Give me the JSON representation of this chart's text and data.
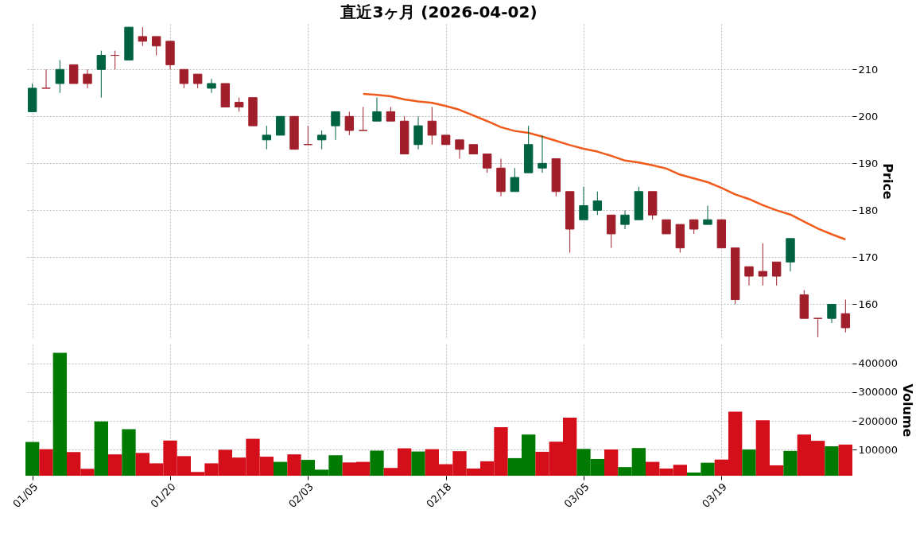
{
  "chart_data": [
    {
      "type": "candlestick",
      "title": "直近3ヶ月 (2026-04-02)",
      "ylabel": "Price",
      "categories": [
        null,
        null,
        null,
        null,
        null,
        null,
        null,
        null,
        null,
        null,
        null,
        null,
        null,
        null,
        null,
        null,
        null,
        null,
        null,
        null,
        null,
        null,
        null,
        null,
        null,
        null,
        null,
        null,
        null,
        null,
        null,
        null,
        null,
        null,
        null,
        null,
        null,
        null,
        null,
        null,
        null,
        null,
        null,
        null,
        null,
        null,
        null,
        null,
        null,
        null,
        null,
        null,
        null,
        null,
        null,
        null,
        null,
        null,
        null,
        null
      ],
      "ohlc": [
        [
          201,
          207,
          201,
          206
        ],
        [
          206,
          210,
          206,
          206
        ],
        [
          207,
          212,
          205,
          210
        ],
        [
          211,
          211,
          207,
          207
        ],
        [
          209,
          210,
          206,
          207
        ],
        [
          210,
          214,
          204,
          213
        ],
        [
          213,
          214,
          210,
          213
        ],
        [
          212,
          219,
          212,
          219
        ],
        [
          217,
          219,
          215,
          216
        ],
        [
          217,
          217,
          213,
          215
        ],
        [
          216,
          216,
          210,
          211
        ],
        [
          210,
          210,
          206,
          207
        ],
        [
          209,
          209,
          206,
          207
        ],
        [
          206,
          208,
          205,
          207
        ],
        [
          207,
          207,
          202,
          202
        ],
        [
          203,
          204,
          201,
          202
        ],
        [
          204,
          204,
          198,
          198
        ],
        [
          195,
          198,
          193,
          196
        ],
        [
          196,
          200,
          196,
          200
        ],
        [
          200,
          200,
          193,
          193
        ],
        [
          194,
          198,
          194,
          194
        ],
        [
          195,
          197,
          193,
          196
        ],
        [
          198,
          201,
          195,
          201
        ],
        [
          200,
          201,
          196,
          197
        ],
        [
          197,
          202,
          197,
          197
        ],
        [
          199,
          204,
          199,
          201
        ],
        [
          201,
          202,
          199,
          199
        ],
        [
          199,
          200,
          192,
          192
        ],
        [
          194,
          200,
          193,
          198
        ],
        [
          199,
          202,
          194,
          196
        ],
        [
          196,
          196,
          194,
          194
        ],
        [
          195,
          195,
          191,
          193
        ],
        [
          194,
          194,
          192,
          192
        ],
        [
          192,
          192,
          188,
          189
        ],
        [
          189,
          191,
          183,
          184
        ],
        [
          184,
          189,
          184,
          187
        ],
        [
          188,
          198,
          188,
          194
        ],
        [
          189,
          196,
          188,
          190
        ],
        [
          191,
          191,
          183,
          184
        ],
        [
          184,
          184,
          171,
          176
        ],
        [
          178,
          185,
          178,
          181
        ],
        [
          180,
          184,
          179,
          182
        ],
        [
          179,
          179,
          172,
          175
        ],
        [
          177,
          180,
          176,
          179
        ],
        [
          178,
          185,
          178,
          184
        ],
        [
          184,
          184,
          178,
          179
        ],
        [
          178,
          178,
          175,
          175
        ],
        [
          177,
          177,
          171,
          172
        ],
        [
          178,
          178,
          175,
          176
        ],
        [
          177,
          181,
          177,
          178
        ],
        [
          178,
          178,
          172,
          172
        ],
        [
          172,
          172,
          160,
          161
        ],
        [
          168,
          168,
          164,
          166
        ],
        [
          167,
          173,
          164,
          166
        ],
        [
          169,
          169,
          164,
          166
        ],
        [
          169,
          174,
          167,
          174
        ],
        [
          162,
          163,
          157,
          157
        ],
        [
          157,
          157,
          153,
          157
        ],
        [
          157,
          160,
          156,
          160
        ],
        [
          158,
          161,
          154,
          155
        ]
      ],
      "colors": [
        "#006340",
        "#a01f2b",
        "#006340",
        "#a01f2b",
        "#a01f2b",
        "#006340",
        "#a01f2b",
        "#006340",
        "#a01f2b",
        "#a01f2b",
        "#a01f2b",
        "#a01f2b",
        "#a01f2b",
        "#006340",
        "#a01f2b",
        "#a01f2b",
        "#a01f2b",
        "#006340",
        "#006340",
        "#a01f2b",
        "#a01f2b",
        "#006340",
        "#006340",
        "#a01f2b",
        "#a01f2b",
        "#006340",
        "#a01f2b",
        "#a01f2b",
        "#006340",
        "#a01f2b",
        "#a01f2b",
        "#a01f2b",
        "#a01f2b",
        "#a01f2b",
        "#a01f2b",
        "#006340",
        "#006340",
        "#006340",
        "#a01f2b",
        "#a01f2b",
        "#006340",
        "#006340",
        "#a01f2b",
        "#006340",
        "#006340",
        "#a01f2b",
        "#a01f2b",
        "#a01f2b",
        "#a01f2b",
        "#006340",
        "#a01f2b",
        "#a01f2b",
        "#a01f2b",
        "#a01f2b",
        "#a01f2b",
        "#006340",
        "#a01f2b",
        "#a01f2b",
        "#006340",
        "#a01f2b"
      ],
      "series": [
        {
          "type": "line",
          "color": "#f05a1a",
          "values": [
            null,
            null,
            null,
            null,
            null,
            null,
            null,
            null,
            null,
            null,
            null,
            null,
            null,
            null,
            null,
            null,
            null,
            null,
            null,
            null,
            null,
            null,
            null,
            null,
            204.8,
            204.6,
            204.3,
            203.6,
            203.2,
            202.9,
            202.2,
            201.4,
            200.2,
            199.0,
            197.7,
            196.9,
            196.5,
            195.7,
            194.8,
            193.9,
            193.1,
            192.5,
            191.6,
            190.6,
            190.2,
            189.6,
            188.9,
            187.6,
            186.8,
            186.0,
            184.8,
            183.4,
            182.4,
            181.1,
            180.0,
            179.1,
            177.6,
            176.1,
            174.9,
            173.8
          ]
        }
      ],
      "ylim": [
        152.8,
        219.7
      ],
      "yticks": [
        160,
        170,
        180,
        190,
        200,
        210
      ],
      "grid": true,
      "tick_labels": "y"
    },
    {
      "type": "bar",
      "ylabel": "Volume",
      "categories": [
        "01/05",
        null,
        null,
        null,
        null,
        null,
        null,
        null,
        null,
        null,
        "01/20",
        null,
        null,
        null,
        null,
        null,
        null,
        null,
        null,
        null,
        "02/03",
        null,
        null,
        null,
        null,
        null,
        null,
        null,
        null,
        null,
        "02/18",
        null,
        null,
        null,
        null,
        null,
        null,
        null,
        null,
        null,
        "03/05",
        null,
        null,
        null,
        null,
        null,
        null,
        null,
        null,
        null,
        "03/19",
        null,
        null,
        null,
        null,
        null,
        null,
        null,
        null,
        null
      ],
      "values": [
        127000,
        102000,
        436000,
        92000,
        34000,
        198000,
        84000,
        171000,
        89000,
        53000,
        132000,
        78000,
        23000,
        53000,
        100000,
        73000,
        138000,
        76000,
        58000,
        84000,
        65000,
        31000,
        81000,
        56000,
        58000,
        97000,
        37000,
        105000,
        94000,
        102000,
        50000,
        95000,
        35000,
        60000,
        178000,
        71000,
        153000,
        93000,
        128000,
        211000,
        103000,
        68000,
        101000,
        40000,
        106000,
        58000,
        35000,
        48000,
        21000,
        55000,
        66000,
        232000,
        101000,
        202000,
        46000,
        96000,
        153000,
        131000,
        112000,
        118000
      ],
      "colors": [
        "#007a00",
        "#d40f1a",
        "#007a00",
        "#d40f1a",
        "#d40f1a",
        "#007a00",
        "#d40f1a",
        "#007a00",
        "#d40f1a",
        "#d40f1a",
        "#d40f1a",
        "#d40f1a",
        "#d40f1a",
        "#d40f1a",
        "#d40f1a",
        "#d40f1a",
        "#d40f1a",
        "#d40f1a",
        "#007a00",
        "#d40f1a",
        "#007a00",
        "#007a00",
        "#007a00",
        "#d40f1a",
        "#d40f1a",
        "#007a00",
        "#d40f1a",
        "#d40f1a",
        "#007a00",
        "#d40f1a",
        "#d40f1a",
        "#d40f1a",
        "#d40f1a",
        "#d40f1a",
        "#d40f1a",
        "#007a00",
        "#007a00",
        "#d40f1a",
        "#d40f1a",
        "#d40f1a",
        "#007a00",
        "#007a00",
        "#d40f1a",
        "#007a00",
        "#007a00",
        "#d40f1a",
        "#d40f1a",
        "#d40f1a",
        "#007a00",
        "#007a00",
        "#d40f1a",
        "#d40f1a",
        "#007a00",
        "#d40f1a",
        "#d40f1a",
        "#007a00",
        "#d40f1a",
        "#d40f1a",
        "#007a00",
        "#d40f1a"
      ],
      "ylim": [
        10000,
        465000
      ],
      "yticks": [
        100000,
        200000,
        300000,
        400000
      ],
      "grid": true
    }
  ]
}
